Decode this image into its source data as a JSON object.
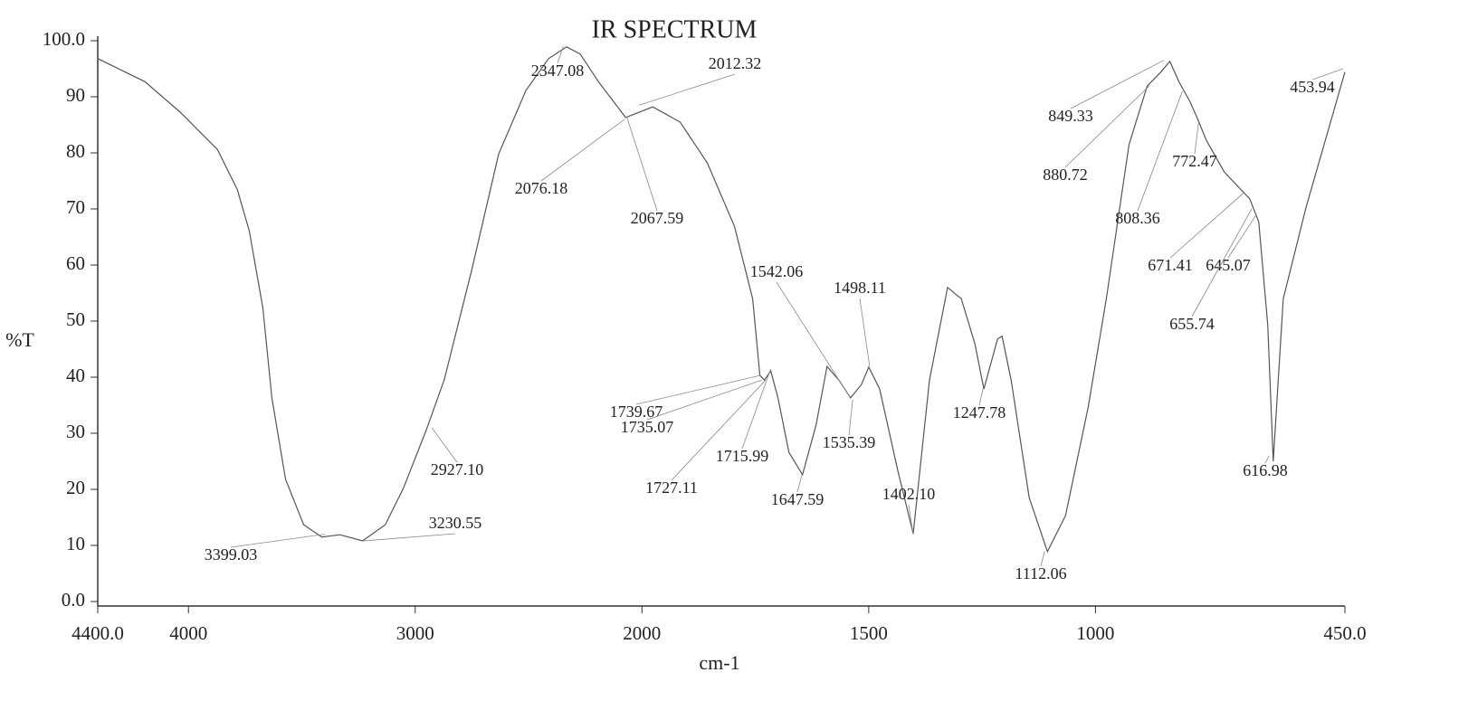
{
  "chart_data": {
    "type": "line",
    "title": "IR SPECTRUM",
    "xlabel": "cm-1",
    "ylabel": "%T",
    "color": "#555555",
    "xlim": [
      4400,
      450
    ],
    "ylim": [
      0,
      100
    ],
    "x_scale_break": 2000,
    "xticks": [
      {
        "value": 4400,
        "label": "4400.0"
      },
      4000,
      3000,
      2000,
      1500,
      1000,
      {
        "value": 450,
        "label": "450.0"
      }
    ],
    "yticks": [
      {
        "value": 0,
        "label": "0.0"
      },
      10,
      20,
      30,
      40,
      50,
      60,
      70,
      80,
      90,
      {
        "value": 100,
        "label": "100.0"
      }
    ],
    "x": [
      4400,
      4192,
      4032,
      3872,
      3784,
      3732,
      3672,
      3632,
      3572,
      3492,
      3412,
      3332,
      3232,
      3132,
      3052,
      2952,
      2872,
      2752,
      2632,
      2512,
      2412,
      2332,
      2272,
      2192,
      2072,
      1976,
      1916,
      1856,
      1796,
      1756,
      1740,
      1730,
      1716,
      1700,
      1676,
      1646,
      1616,
      1592,
      1566,
      1540,
      1516,
      1500,
      1476,
      1436,
      1402,
      1366,
      1326,
      1296,
      1266,
      1246,
      1216,
      1206,
      1186,
      1146,
      1106,
      1066,
      1016,
      976,
      926,
      886,
      856,
      836,
      816,
      792,
      776,
      756,
      716,
      660,
      640,
      620,
      608,
      586,
      536,
      450
    ],
    "values": [
      96.8,
      92.7,
      87.1,
      80.6,
      73.4,
      66.1,
      52.4,
      36.3,
      21.8,
      13.7,
      11.5,
      11.9,
      10.8,
      13.7,
      20.2,
      30.5,
      39.5,
      58.9,
      79.8,
      91.1,
      96.8,
      98.9,
      97.6,
      92.7,
      86.3,
      88.2,
      85.5,
      78.2,
      66.9,
      54,
      40.3,
      39.5,
      41.1,
      36.3,
      26.6,
      22.6,
      31.5,
      41.9,
      39.5,
      36.3,
      38.7,
      41.8,
      37.9,
      23.4,
      12.1,
      39.5,
      56,
      54,
      46,
      37.9,
      46.8,
      47.3,
      39.5,
      18.5,
      8.9,
      15.3,
      34.7,
      54,
      81.5,
      91.9,
      94.4,
      96.3,
      92.7,
      89.2,
      86.3,
      82.3,
      76.6,
      71.8,
      67.7,
      49.2,
      25,
      54,
      70.2,
      94.4
    ],
    "peaks": [
      {
        "x": 3399.03,
        "label": "3399.03",
        "y": 12
      },
      {
        "x": 3230.55,
        "label": "3230.55",
        "y": 10.8
      },
      {
        "x": 2927.1,
        "label": "2927.10",
        "y": 31
      },
      {
        "x": 2347.08,
        "label": "2347.08",
        "y": 99
      },
      {
        "x": 2012.32,
        "label": "2012.32",
        "y": 88.5
      },
      {
        "x": 2076.18,
        "label": "2076.18",
        "y": 86
      },
      {
        "x": 2067.59,
        "label": "2067.59",
        "y": 86.5
      },
      {
        "x": 1739.67,
        "label": "1739.67",
        "y": 40.3
      },
      {
        "x": 1735.07,
        "label": "1735.07",
        "y": 39.5
      },
      {
        "x": 1727.11,
        "label": "1727.11",
        "y": 39.5
      },
      {
        "x": 1715.99,
        "label": "1715.99",
        "y": 41.5
      },
      {
        "x": 1647.59,
        "label": "1647.59",
        "y": 22.5
      },
      {
        "x": 1542.06,
        "label": "1542.06",
        "y": 36.5
      },
      {
        "x": 1535.39,
        "label": "1535.39",
        "y": 36
      },
      {
        "x": 1498.11,
        "label": "1498.11",
        "y": 42
      },
      {
        "x": 1402.1,
        "label": "1402.10",
        "y": 12
      },
      {
        "x": 1247.78,
        "label": "1247.78",
        "y": 38
      },
      {
        "x": 1112.06,
        "label": "1112.06",
        "y": 9
      },
      {
        "x": 880.72,
        "label": "880.72",
        "y": 92
      },
      {
        "x": 849.33,
        "label": "849.33",
        "y": 96.5
      },
      {
        "x": 808.36,
        "label": "808.36",
        "y": 91
      },
      {
        "x": 772.47,
        "label": "772.47",
        "y": 85.5
      },
      {
        "x": 671.41,
        "label": "671.41",
        "y": 73
      },
      {
        "x": 645.07,
        "label": "645.07",
        "y": 69
      },
      {
        "x": 655.74,
        "label": "655.74",
        "y": 70
      },
      {
        "x": 616.98,
        "label": "616.98",
        "y": 26
      },
      {
        "x": 453.94,
        "label": "453.94",
        "y": 95
      }
    ]
  }
}
